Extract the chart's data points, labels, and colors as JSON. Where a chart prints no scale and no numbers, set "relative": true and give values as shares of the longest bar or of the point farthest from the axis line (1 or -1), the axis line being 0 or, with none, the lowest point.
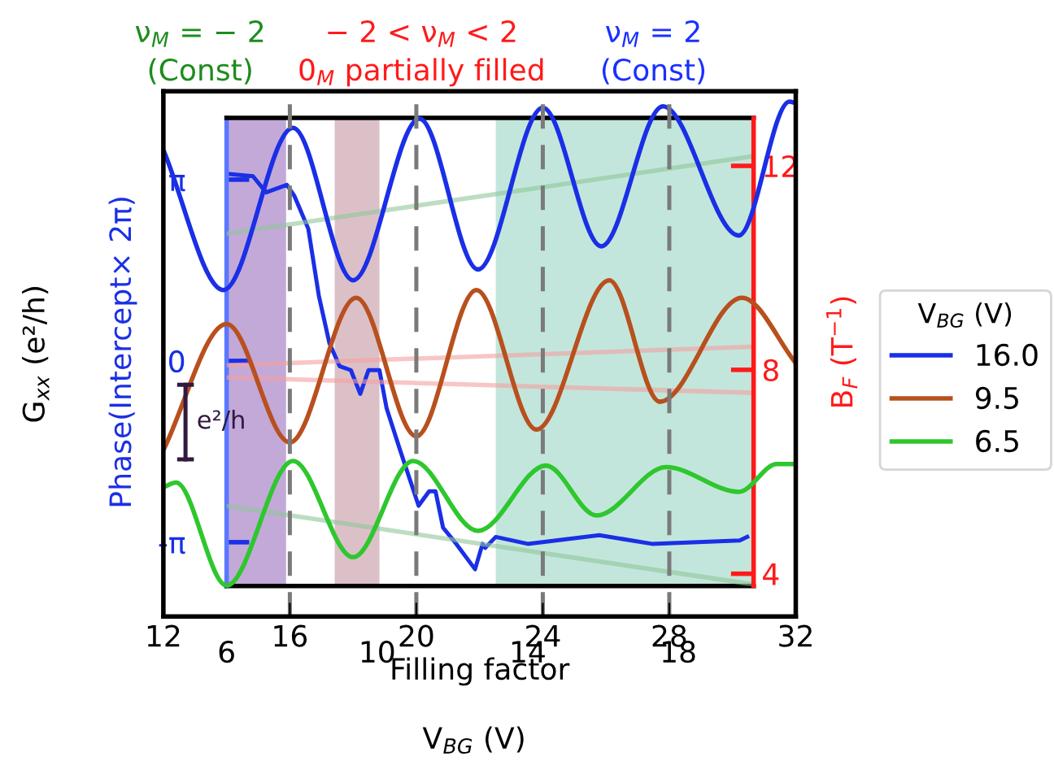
{
  "chart_data": [
    {
      "type": "line",
      "relative": true,
      "xlim": [
        12,
        32
      ],
      "xticks": [
        12,
        16,
        20,
        24,
        28,
        32
      ],
      "tick_labels": "x",
      "xlabel": "Filling factor",
      "ylabel": "G$_{xx}$ (e²/h)",
      "legend_title": "V$_{BG}$ (V)",
      "legend": "right",
      "grid": false,
      "line_style": "solid",
      "series": [
        {
          "name": "16.0",
          "color": "#1a2fe6",
          "x": [
            12,
            13.9,
            16.1,
            18.0,
            20.1,
            21.95,
            24.0,
            25.85,
            27.8,
            30.2,
            31.8,
            32
          ],
          "values": [
            0.906,
            0.634,
            0.949,
            0.653,
            0.967,
            0.674,
            0.988,
            0.719,
            0.991,
            0.74,
            1.0,
            0.997
          ]
        },
        {
          "name": "9.5",
          "color": "#b8501e",
          "x": [
            12,
            14.0,
            16.0,
            18.1,
            20.0,
            21.9,
            23.8,
            26.1,
            27.7,
            30.3,
            32
          ],
          "values": [
            0.323,
            0.568,
            0.338,
            0.619,
            0.35,
            0.634,
            0.363,
            0.653,
            0.417,
            0.619,
            0.492
          ]
        },
        {
          "name": "6.5",
          "color": "#2ec72e",
          "x": [
            12,
            12.4,
            14.0,
            16.1,
            18.0,
            19.9,
            21.95,
            24.1,
            25.7,
            27.9,
            30.2,
            31.4,
            32
          ],
          "values": [
            0.251,
            0.26,
            0.06,
            0.302,
            0.115,
            0.302,
            0.166,
            0.293,
            0.196,
            0.29,
            0.242,
            0.296,
            0.296
          ]
        }
      ],
      "ref_lines": [
        {
          "axis": "x",
          "value": 16,
          "color": "#7a7a7a",
          "line_style": "dashed"
        },
        {
          "axis": "x",
          "value": 20,
          "color": "#7a7a7a",
          "line_style": "dashed"
        },
        {
          "axis": "x",
          "value": 24,
          "color": "#7a7a7a",
          "line_style": "dashed"
        },
        {
          "axis": "x",
          "value": 28,
          "color": "#7a7a7a",
          "line_style": "dashed"
        }
      ],
      "annotations": [
        "ν$_{M}$ = − 2",
        "(Const)",
        "− 2 < ν$_{M}$ < 2",
        "0$_{M}$ partially filled",
        "ν$_{M}$ = 2",
        "(Const)",
        "e²/h"
      ]
    },
    {
      "type": "line",
      "xlim": [
        6,
        20
      ],
      "xticks": [
        6,
        10,
        14,
        18
      ],
      "ylim": [
        -3.9,
        4.21
      ],
      "yticks": [
        {
          "value": 3.14159,
          "label": "π"
        },
        0,
        {
          "value": -3.14159,
          "label": "-π"
        }
      ],
      "y2lim": [
        3.76,
        12.94
      ],
      "y2ticks": [
        4,
        8,
        12
      ],
      "xlabel": "V$_{BG}$ (V)",
      "ylabel": "Phase(Intercept× 2π)",
      "y2label": "B$_{F}$ (T$^{−1}$)",
      "grid": false,
      "marker": "none",
      "line_style": "solid",
      "bands": [
        {
          "axis": "x",
          "from": 6,
          "to": 7.58,
          "color": "#c3a9d8"
        },
        {
          "axis": "x",
          "from": 8.87,
          "to": 10.06,
          "color": "#dcc0c8"
        },
        {
          "axis": "x",
          "from": 13.15,
          "to": 20,
          "color": "#c3e6dc"
        }
      ],
      "series": [
        {
          "color": "#1a2fe6",
          "x": [
            6.06,
            6.7,
            7.05,
            7.6,
            7.8,
            8.17,
            8.45,
            8.73,
            9.0,
            9.3,
            9.55,
            9.77,
            10.06,
            10.25,
            10.62,
            11.1,
            11.38,
            11.55,
            11.75,
            12.1,
            12.6,
            12.8,
            12.87,
            13.15,
            14.0,
            15.9,
            17.3,
            19.63,
            19.83
          ],
          "values": [
            3.24,
            3.2,
            2.92,
            3.05,
            2.86,
            2.29,
            1.13,
            0.31,
            -0.09,
            -0.16,
            -0.57,
            -0.16,
            -0.16,
            -0.82,
            -1.57,
            -2.51,
            -2.26,
            -2.26,
            -2.89,
            -3.17,
            -3.61,
            -3.17,
            -3.24,
            -3.05,
            -3.17,
            -3.02,
            -3.17,
            -3.11,
            -3.05
          ]
        },
        {
          "color": "#8fc79a",
          "axis": "y2",
          "x": [
            6,
            19.9
          ],
          "values": [
            10.67,
            12.18
          ]
        },
        {
          "color": "#f4a0a0",
          "axis": "y2",
          "x": [
            6,
            19.9
          ],
          "values": [
            8.09,
            8.45
          ]
        },
        {
          "color": "#f4a0a0",
          "axis": "y2",
          "x": [
            6,
            19.9
          ],
          "values": [
            7.85,
            7.55
          ]
        },
        {
          "color": "#8fc79a",
          "axis": "y2",
          "x": [
            6,
            19.9
          ],
          "values": [
            5.33,
            3.8
          ]
        }
      ]
    }
  ]
}
